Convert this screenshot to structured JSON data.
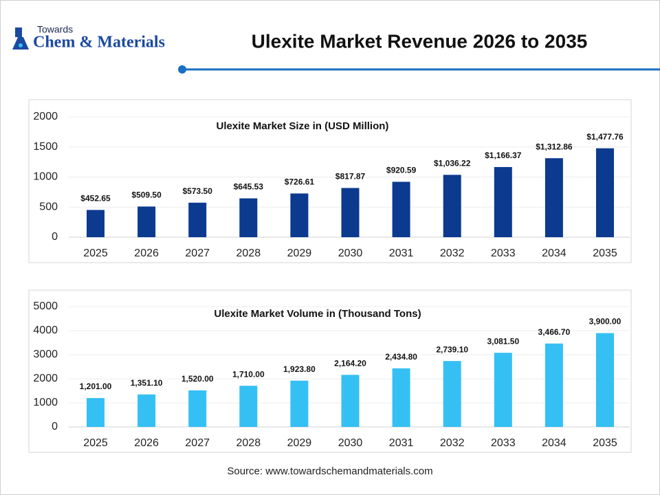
{
  "logo": {
    "small": "Towards",
    "main": "Chem & Materials"
  },
  "title": "Ulexite Market Revenue 2026 to 2035",
  "chart_data": [
    {
      "type": "bar",
      "title": "Ulexite Market Size in (USD Million)",
      "categories": [
        "2025",
        "2026",
        "2027",
        "2028",
        "2029",
        "2030",
        "2031",
        "2032",
        "2033",
        "2034",
        "2035"
      ],
      "values": [
        452.65,
        509.5,
        573.5,
        645.53,
        726.61,
        817.87,
        920.59,
        1036.22,
        1166.37,
        1312.86,
        1477.76
      ],
      "value_labels": [
        "$452.65",
        "$509.50",
        "$573.50",
        "$645.53",
        "$726.61",
        "$817.87",
        "$920.59",
        "$1,036.22",
        "$1,166.37",
        "$1,312.86",
        "$1,477.76"
      ],
      "color": "#0b3a8f",
      "ylim": [
        0,
        2000
      ],
      "yticks": [
        0,
        500,
        1000,
        1500,
        2000
      ],
      "grid": true
    },
    {
      "type": "bar",
      "title": "Ulexite Market Volume in (Thousand Tons)",
      "categories": [
        "2025",
        "2026",
        "2027",
        "2028",
        "2029",
        "2030",
        "2031",
        "2032",
        "2033",
        "2034",
        "2035"
      ],
      "values": [
        1201.0,
        1351.1,
        1520.0,
        1710.0,
        1923.8,
        2164.2,
        2434.8,
        2739.1,
        3081.5,
        3466.7,
        3900.0
      ],
      "value_labels": [
        "1,201.00",
        "1,351.10",
        "1,520.00",
        "1,710.00",
        "1,923.80",
        "2,164.20",
        "2,434.80",
        "2,739.10",
        "3,081.50",
        "3,466.70",
        "3,900.00"
      ],
      "color": "#35c0f4",
      "ylim": [
        0,
        5000
      ],
      "yticks": [
        0,
        1000,
        2000,
        3000,
        4000,
        5000
      ],
      "grid": true
    }
  ],
  "source": "Source: www.towardschemandmaterials.com"
}
